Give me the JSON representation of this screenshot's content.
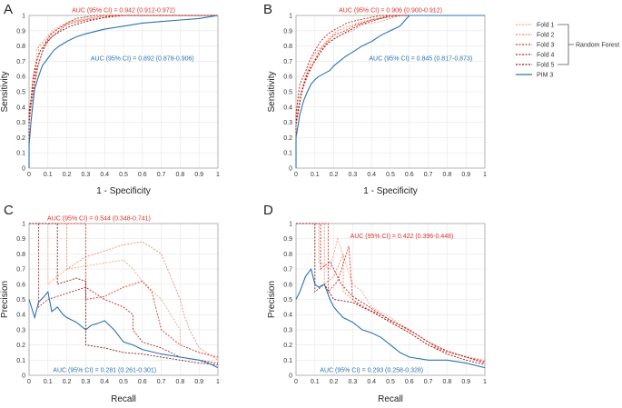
{
  "legend": {
    "entries": [
      {
        "name": "Fold 1",
        "color": "#f4a582",
        "dash": "2,1.5"
      },
      {
        "name": "Fold 2",
        "color": "#ee8f6d",
        "dash": "2,1.5"
      },
      {
        "name": "Fold 3",
        "color": "#de3a2b",
        "dash": "2,1.5"
      },
      {
        "name": "Fold 4",
        "color": "#c0262b",
        "dash": "2,1.5"
      },
      {
        "name": "Fold 5",
        "color": "#8b1a1a",
        "dash": "2,1.5"
      },
      {
        "name": "PIM 3",
        "color": "#2b73b3",
        "dash": ""
      }
    ],
    "group_label": "Random Forest"
  },
  "chart_data": [
    {
      "panel": "A",
      "type": "line",
      "xlabel": "1 - Specificity",
      "ylabel": "Sensitivity",
      "xlim": [
        0,
        1
      ],
      "ylim": [
        0,
        1
      ],
      "xticks": [
        "0",
        "0.1",
        "0.2",
        "0.3",
        "0.4",
        "0.5",
        "0.6",
        "0.7",
        "0.8",
        "0.9",
        "1"
      ],
      "yticks": [
        "0",
        "0.1",
        "0.2",
        "0.3",
        "0.4",
        "0.5",
        "0.6",
        "0.7",
        "0.8",
        "0.9",
        "1"
      ],
      "annotations": [
        {
          "text": "AUC (95% CI) = 0.942 (0.912-0.972)",
          "color": "#e0302a",
          "x": 0.5,
          "y": 1.035
        },
        {
          "text": "AUC (95% CI) = 0.892 (0.878-0.906)",
          "color": "#2b73b3",
          "x": 0.6,
          "y": 0.72
        }
      ],
      "series": [
        {
          "name": "Fold 1",
          "x": [
            0,
            0,
            0.01,
            0.02,
            0.04,
            0.04,
            0.08,
            0.1,
            0.12,
            0.15,
            0.2,
            0.3,
            0.45,
            1
          ],
          "y": [
            0,
            0.3,
            0.42,
            0.6,
            0.72,
            0.78,
            0.82,
            0.84,
            0.9,
            0.92,
            0.95,
            0.98,
            1,
            1
          ]
        },
        {
          "name": "Fold 2",
          "x": [
            0,
            0,
            0.02,
            0.03,
            0.05,
            0.05,
            0.09,
            0.11,
            0.14,
            0.18,
            0.22,
            0.28,
            0.4,
            1
          ],
          "y": [
            0,
            0.35,
            0.5,
            0.62,
            0.75,
            0.8,
            0.85,
            0.88,
            0.9,
            0.93,
            0.96,
            0.97,
            1,
            1
          ]
        },
        {
          "name": "Fold 3",
          "x": [
            0,
            0,
            0.01,
            0.03,
            0.05,
            0.07,
            0.1,
            0.13,
            0.16,
            0.2,
            0.3,
            0.5,
            1
          ],
          "y": [
            0,
            0.28,
            0.4,
            0.55,
            0.68,
            0.76,
            0.83,
            0.87,
            0.9,
            0.94,
            0.97,
            1,
            1
          ]
        },
        {
          "name": "Fold 4",
          "x": [
            0,
            0,
            0.02,
            0.04,
            0.06,
            0.08,
            0.1,
            0.12,
            0.15,
            0.2,
            0.25,
            0.35,
            1
          ],
          "y": [
            0,
            0.38,
            0.52,
            0.65,
            0.72,
            0.8,
            0.85,
            0.88,
            0.91,
            0.95,
            0.98,
            1,
            1
          ]
        },
        {
          "name": "Fold 5",
          "x": [
            0,
            0,
            0.01,
            0.02,
            0.04,
            0.06,
            0.09,
            0.12,
            0.17,
            0.22,
            0.3,
            0.45,
            1
          ],
          "y": [
            0,
            0.32,
            0.45,
            0.58,
            0.7,
            0.77,
            0.82,
            0.86,
            0.9,
            0.93,
            0.96,
            1,
            1
          ]
        },
        {
          "name": "PIM 3",
          "x": [
            0,
            0,
            0.01,
            0.02,
            0.03,
            0.05,
            0.07,
            0.1,
            0.13,
            0.16,
            0.2,
            0.25,
            0.3,
            0.4,
            0.5,
            0.6,
            0.7,
            0.8,
            0.9,
            0.95,
            1
          ],
          "y": [
            0,
            0.15,
            0.3,
            0.42,
            0.52,
            0.6,
            0.67,
            0.72,
            0.77,
            0.8,
            0.83,
            0.86,
            0.88,
            0.91,
            0.93,
            0.95,
            0.96,
            0.97,
            0.98,
            0.99,
            1
          ]
        }
      ]
    },
    {
      "panel": "B",
      "type": "line",
      "xlabel": "1 - Specificity",
      "ylabel": "Sensitivity",
      "xlim": [
        0,
        1
      ],
      "ylim": [
        0,
        1
      ],
      "xticks": [
        "0",
        "0.1",
        "0.2",
        "0.3",
        "0.4",
        "0.5",
        "0.6",
        "0.7",
        "0.8",
        "0.9",
        "1"
      ],
      "yticks": [
        "0",
        "0.1",
        "0.2",
        "0.3",
        "0.4",
        "0.5",
        "0.6",
        "0.7",
        "0.8",
        "0.9",
        "1"
      ],
      "annotations": [
        {
          "text": "AUC (95% CI) = 0.906 (0.900-0.912)",
          "color": "#e0302a",
          "x": 0.5,
          "y": 1.035
        },
        {
          "text": "AUC (95% CI) = 0.845 (0.817-0.873)",
          "color": "#2b73b3",
          "x": 0.66,
          "y": 0.72
        }
      ],
      "series": [
        {
          "name": "Fold 1",
          "x": [
            0,
            0,
            0.02,
            0.04,
            0.06,
            0.08,
            0.12,
            0.15,
            0.2,
            0.25,
            0.3,
            0.35,
            0.45,
            0.55,
            1
          ],
          "y": [
            0,
            0.3,
            0.45,
            0.55,
            0.62,
            0.68,
            0.74,
            0.8,
            0.85,
            0.88,
            0.9,
            0.94,
            0.96,
            1,
            1
          ]
        },
        {
          "name": "Fold 2",
          "x": [
            0,
            0,
            0.01,
            0.03,
            0.05,
            0.08,
            0.1,
            0.14,
            0.18,
            0.22,
            0.28,
            0.35,
            0.5,
            1
          ],
          "y": [
            0,
            0.32,
            0.44,
            0.52,
            0.6,
            0.7,
            0.75,
            0.8,
            0.86,
            0.9,
            0.93,
            0.96,
            1,
            1
          ]
        },
        {
          "name": "Fold 3",
          "x": [
            0,
            0,
            0.02,
            0.03,
            0.06,
            0.09,
            0.12,
            0.16,
            0.2,
            0.26,
            0.32,
            0.4,
            0.55,
            1
          ],
          "y": [
            0,
            0.28,
            0.42,
            0.5,
            0.6,
            0.68,
            0.76,
            0.82,
            0.87,
            0.9,
            0.94,
            0.97,
            1,
            1
          ]
        },
        {
          "name": "Fold 4",
          "x": [
            0,
            0,
            0.01,
            0.02,
            0.05,
            0.07,
            0.1,
            0.13,
            0.17,
            0.21,
            0.27,
            0.33,
            0.45,
            1
          ],
          "y": [
            0,
            0.35,
            0.46,
            0.55,
            0.63,
            0.7,
            0.77,
            0.83,
            0.88,
            0.91,
            0.95,
            0.97,
            1,
            1
          ]
        },
        {
          "name": "Fold 5",
          "x": [
            0,
            0,
            0.02,
            0.04,
            0.06,
            0.1,
            0.13,
            0.17,
            0.22,
            0.28,
            0.34,
            0.42,
            0.5,
            1
          ],
          "y": [
            0,
            0.3,
            0.44,
            0.54,
            0.62,
            0.7,
            0.76,
            0.82,
            0.86,
            0.9,
            0.94,
            0.97,
            1,
            1
          ]
        },
        {
          "name": "PIM 3",
          "x": [
            0,
            0,
            0.02,
            0.04,
            0.06,
            0.08,
            0.1,
            0.12,
            0.15,
            0.18,
            0.2,
            0.23,
            0.26,
            0.3,
            0.35,
            0.4,
            0.45,
            0.5,
            0.55,
            0.6,
            1
          ],
          "y": [
            0,
            0.2,
            0.35,
            0.44,
            0.5,
            0.55,
            0.58,
            0.6,
            0.62,
            0.64,
            0.67,
            0.7,
            0.73,
            0.76,
            0.8,
            0.83,
            0.87,
            0.9,
            0.93,
            1,
            1
          ]
        }
      ]
    },
    {
      "panel": "C",
      "type": "line",
      "xlabel": "Recall",
      "ylabel": "Precision",
      "xlim": [
        0,
        1
      ],
      "ylim": [
        0,
        1
      ],
      "xticks": [
        "0",
        "0.1",
        "0.2",
        "0.3",
        "0.4",
        "0.5",
        "0.6",
        "0.7",
        "0.8",
        "0.9",
        "1"
      ],
      "yticks": [
        "0",
        "0.1",
        "0.2",
        "0.3",
        "0.4",
        "0.5",
        "0.6",
        "0.7",
        "0.8",
        "0.9",
        "1"
      ],
      "annotations": [
        {
          "text": "AUC (95% CI) = 0.544 (0.348-0.741)",
          "color": "#e0302a",
          "x": 0.37,
          "y": 1.035
        },
        {
          "text": "AUC (95% CI) = 0.281 (0.261-0.301)",
          "color": "#2b73b3",
          "x": 0.4,
          "y": 0.035
        }
      ],
      "series": [
        {
          "name": "Fold 1",
          "x": [
            0,
            0.1,
            0.1,
            0.2,
            0.3,
            0.4,
            0.5,
            0.55,
            0.6,
            0.7,
            0.75,
            0.8,
            0.8,
            0.9,
            1
          ],
          "y": [
            1,
            1,
            0.6,
            0.7,
            0.72,
            0.74,
            0.76,
            0.7,
            0.62,
            0.5,
            0.4,
            0.3,
            0.2,
            0.15,
            0.12
          ]
        },
        {
          "name": "Fold 2",
          "x": [
            0,
            0.2,
            0.2,
            0.3,
            0.4,
            0.5,
            0.6,
            0.7,
            0.8,
            0.82,
            0.85,
            0.9,
            1
          ],
          "y": [
            1,
            1,
            0.7,
            0.78,
            0.82,
            0.86,
            0.88,
            0.8,
            0.5,
            0.4,
            0.3,
            0.18,
            0.1
          ]
        },
        {
          "name": "Fold 3",
          "x": [
            0,
            0.3,
            0.3,
            0.4,
            0.5,
            0.6,
            0.65,
            0.7,
            0.8,
            0.9,
            1
          ],
          "y": [
            1,
            1,
            0.5,
            0.52,
            0.58,
            0.62,
            0.55,
            0.3,
            0.2,
            0.15,
            0.12
          ]
        },
        {
          "name": "Fold 4",
          "x": [
            0,
            0.05,
            0.05,
            0.1,
            0.2,
            0.3,
            0.4,
            0.5,
            0.55,
            0.55,
            0.6,
            0.7,
            0.8,
            1
          ],
          "y": [
            1,
            1,
            0.45,
            0.5,
            0.54,
            0.58,
            0.5,
            0.45,
            0.4,
            0.3,
            0.22,
            0.18,
            0.12,
            0.08
          ]
        },
        {
          "name": "Fold 5",
          "x": [
            0,
            0.15,
            0.15,
            0.25,
            0.3,
            0.3,
            0.4,
            0.5,
            0.6,
            0.7,
            0.8,
            0.9,
            1
          ],
          "y": [
            1,
            1,
            0.6,
            0.64,
            0.62,
            0.2,
            0.18,
            0.15,
            0.14,
            0.12,
            0.1,
            0.08,
            0.07
          ]
        },
        {
          "name": "PIM 3",
          "x": [
            0,
            0.03,
            0.05,
            0.08,
            0.1,
            0.12,
            0.15,
            0.18,
            0.2,
            0.25,
            0.3,
            0.33,
            0.36,
            0.4,
            0.45,
            0.5,
            0.55,
            0.6,
            0.7,
            0.8,
            0.9,
            0.95,
            1
          ],
          "y": [
            0.5,
            0.38,
            0.48,
            0.52,
            0.55,
            0.42,
            0.45,
            0.4,
            0.38,
            0.35,
            0.3,
            0.33,
            0.34,
            0.36,
            0.3,
            0.22,
            0.2,
            0.17,
            0.14,
            0.12,
            0.1,
            0.08,
            0.05
          ]
        }
      ]
    },
    {
      "panel": "D",
      "type": "line",
      "xlabel": "Recall",
      "ylabel": "Precision",
      "xlim": [
        0,
        1
      ],
      "ylim": [
        0,
        1
      ],
      "xticks": [
        "0",
        "0.1",
        "0.2",
        "0.3",
        "0.4",
        "0.5",
        "0.6",
        "0.7",
        "0.8",
        "0.9",
        "1"
      ],
      "yticks": [
        "0",
        "0.1",
        "0.2",
        "0.3",
        "0.4",
        "0.5",
        "0.6",
        "0.7",
        "0.8",
        "0.9",
        "1"
      ],
      "annotations": [
        {
          "text": "AUC (95% CI) = 0.422 (0.396-0.448)",
          "color": "#e0302a",
          "x": 0.56,
          "y": 0.92
        },
        {
          "text": "AUC (95% CI) = 0.293 (0.258-0.328)",
          "color": "#2b73b3",
          "x": 0.4,
          "y": 0.035
        }
      ],
      "series": [
        {
          "name": "Fold 1",
          "x": [
            0,
            0.12,
            0.12,
            0.18,
            0.22,
            0.3,
            0.35,
            0.4,
            0.5,
            0.6,
            0.7,
            0.8,
            0.9,
            1
          ],
          "y": [
            1,
            1,
            0.75,
            0.7,
            0.9,
            0.6,
            0.55,
            0.45,
            0.38,
            0.3,
            0.22,
            0.16,
            0.12,
            0.1
          ]
        },
        {
          "name": "Fold 2",
          "x": [
            0,
            0.15,
            0.15,
            0.2,
            0.25,
            0.25,
            0.3,
            0.4,
            0.5,
            0.6,
            0.7,
            0.8,
            0.9,
            1
          ],
          "y": [
            1,
            1,
            0.6,
            0.65,
            0.8,
            0.55,
            0.5,
            0.42,
            0.35,
            0.28,
            0.2,
            0.15,
            0.12,
            0.08
          ]
        },
        {
          "name": "Fold 3",
          "x": [
            0,
            0.17,
            0.17,
            0.22,
            0.28,
            0.3,
            0.35,
            0.45,
            0.55,
            0.65,
            0.75,
            0.85,
            1
          ],
          "y": [
            1,
            1,
            0.55,
            0.62,
            0.85,
            0.5,
            0.45,
            0.4,
            0.33,
            0.26,
            0.18,
            0.14,
            0.09
          ]
        },
        {
          "name": "Fold 4",
          "x": [
            0,
            0.13,
            0.13,
            0.18,
            0.24,
            0.3,
            0.4,
            0.5,
            0.6,
            0.7,
            0.8,
            0.9,
            1
          ],
          "y": [
            1,
            1,
            0.7,
            0.75,
            0.6,
            0.52,
            0.44,
            0.36,
            0.3,
            0.22,
            0.16,
            0.12,
            0.08
          ]
        },
        {
          "name": "Fold 5",
          "x": [
            0,
            0.1,
            0.1,
            0.15,
            0.2,
            0.3,
            0.4,
            0.5,
            0.6,
            0.7,
            0.8,
            0.9,
            1
          ],
          "y": [
            1,
            1,
            0.55,
            0.6,
            0.5,
            0.48,
            0.42,
            0.35,
            0.28,
            0.2,
            0.14,
            0.1,
            0.07
          ]
        },
        {
          "name": "PIM 3",
          "x": [
            0,
            0.02,
            0.05,
            0.08,
            0.1,
            0.12,
            0.15,
            0.18,
            0.2,
            0.22,
            0.25,
            0.3,
            0.35,
            0.4,
            0.45,
            0.5,
            0.55,
            0.6,
            0.7,
            0.8,
            0.9,
            1
          ],
          "y": [
            0.5,
            0.55,
            0.65,
            0.7,
            0.6,
            0.58,
            0.6,
            0.5,
            0.45,
            0.42,
            0.38,
            0.35,
            0.3,
            0.28,
            0.25,
            0.2,
            0.15,
            0.12,
            0.1,
            0.1,
            0.08,
            0.05
          ]
        }
      ]
    }
  ]
}
